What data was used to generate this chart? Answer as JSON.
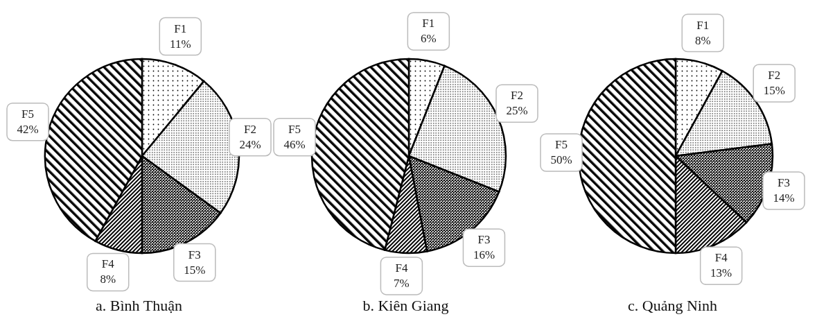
{
  "chart_data": [
    {
      "type": "pie",
      "title": "a. Bình Thuận",
      "categories": [
        "F1",
        "F2",
        "F3",
        "F4",
        "F5"
      ],
      "values": [
        11,
        24,
        15,
        8,
        42
      ],
      "value_labels": [
        "11%",
        "24%",
        "15%",
        "8%",
        "42%"
      ]
    },
    {
      "type": "pie",
      "title": "b. Kiên Giang",
      "categories": [
        "F1",
        "F2",
        "F3",
        "F4",
        "F5"
      ],
      "values": [
        6,
        25,
        16,
        7,
        46
      ],
      "value_labels": [
        "6%",
        "25%",
        "16%",
        "7%",
        "46%"
      ]
    },
    {
      "type": "pie",
      "title": "c. Quảng Ninh",
      "categories": [
        "F1",
        "F2",
        "F3",
        "F4",
        "F5"
      ],
      "values": [
        8,
        15,
        14,
        13,
        50
      ],
      "value_labels": [
        "8%",
        "15%",
        "14%",
        "13%",
        "50%"
      ]
    }
  ]
}
